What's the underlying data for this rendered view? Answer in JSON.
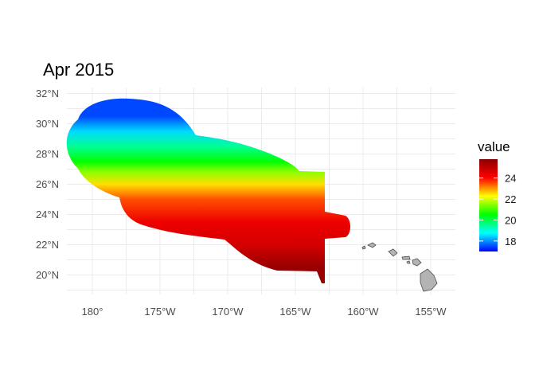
{
  "title": "Apr 2015",
  "x_ticks": [
    {
      "lon": -180,
      "label": "180°"
    },
    {
      "lon": -175,
      "label": "175°W"
    },
    {
      "lon": -170,
      "label": "170°W"
    },
    {
      "lon": -165,
      "label": "165°W"
    },
    {
      "lon": -160,
      "label": "160°W"
    },
    {
      "lon": -155,
      "label": "155°W"
    }
  ],
  "y_ticks": [
    {
      "lat": 32,
      "label": "32°N"
    },
    {
      "lat": 30,
      "label": "30°N"
    },
    {
      "lat": 28,
      "label": "28°N"
    },
    {
      "lat": 26,
      "label": "26°N"
    },
    {
      "lat": 24,
      "label": "24°N"
    },
    {
      "lat": 22,
      "label": "22°N"
    },
    {
      "lat": 20,
      "label": "20°N"
    }
  ],
  "legend": {
    "title": "value",
    "ticks": [
      {
        "value": 18,
        "label": "18"
      },
      {
        "value": 20,
        "label": "20"
      },
      {
        "value": 22,
        "label": "22"
      },
      {
        "value": 24,
        "label": "24"
      }
    ],
    "range": [
      17,
      25.8
    ],
    "colors": [
      "#0000ff",
      "#00ffff",
      "#00ff00",
      "#ffff00",
      "#ff0000",
      "#8b0000"
    ]
  },
  "chart_data": {
    "type": "heatmap",
    "title": "Apr 2015",
    "xlabel": "",
    "ylabel": "",
    "xlim": [
      -184.5,
      -153.5
    ],
    "ylim": [
      19,
      32.5
    ],
    "grid": true,
    "legend_position": "right",
    "value_range": [
      17,
      25.8
    ],
    "value_by_latitude": [
      {
        "lat": 30.5,
        "value": 17.5
      },
      {
        "lat": 29.5,
        "value": 18.5
      },
      {
        "lat": 28.5,
        "value": 19.5
      },
      {
        "lat": 27.5,
        "value": 20.5
      },
      {
        "lat": 26.8,
        "value": 21.5
      },
      {
        "lat": 26.0,
        "value": 22.5
      },
      {
        "lat": 25.0,
        "value": 23.5
      },
      {
        "lat": 23.5,
        "value": 24.3
      },
      {
        "lat": 22.0,
        "value": 24.7
      },
      {
        "lat": 20.5,
        "value": 25.6
      }
    ]
  }
}
